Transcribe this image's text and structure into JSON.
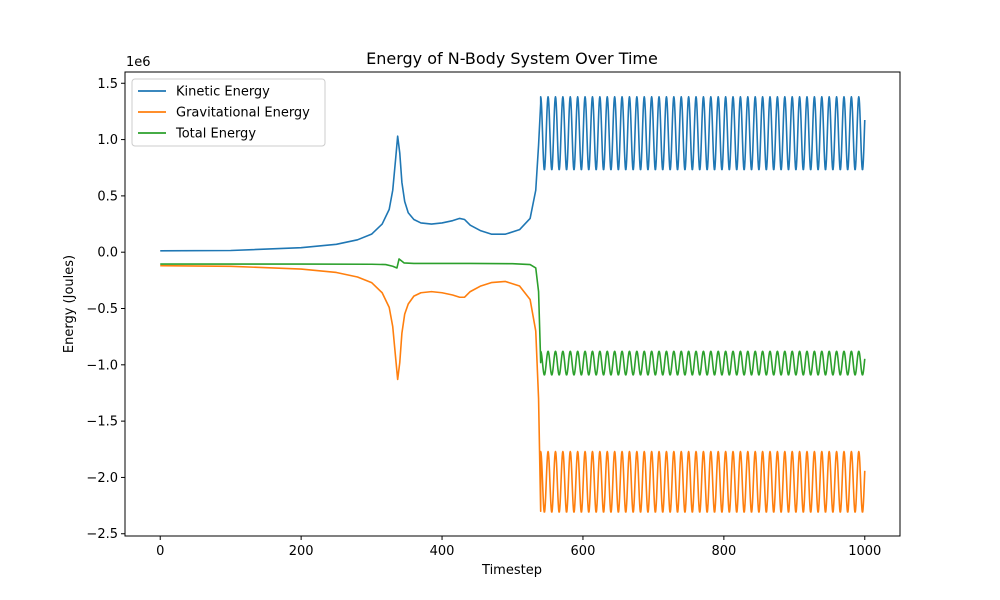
{
  "chart_data": {
    "type": "line",
    "title": "Energy of N-Body System Over Time",
    "xlabel": "Timestep",
    "ylabel": "Energy (Joules)",
    "y_offset_label": "1e6",
    "xlim": [
      -50,
      1050
    ],
    "ylim": [
      -2.52,
      1.6
    ],
    "y_scale": 1000000,
    "xticks": [
      0,
      200,
      400,
      600,
      800,
      1000
    ],
    "xtick_labels": [
      "0",
      "200",
      "400",
      "600",
      "800",
      "1000"
    ],
    "yticks": [
      1.5,
      1.0,
      0.5,
      0.0,
      -0.5,
      -1.0,
      -1.5,
      -2.0,
      -2.5
    ],
    "ytick_labels": [
      "1.5",
      "1.0",
      "0.5",
      "0.0",
      "−0.5",
      "−1.0",
      "−1.5",
      "−2.0",
      "−2.5"
    ],
    "grid": false,
    "legend_position": "top-left",
    "series": [
      {
        "name": "Kinetic Energy",
        "color": "#1f77b4",
        "segments": [
          {
            "kind": "points",
            "x": [
              0,
              100,
              200,
              250,
              280,
              300,
              315,
              325,
              330,
              334,
              337,
              340,
              343,
              347,
              352,
              360,
              370,
              385,
              400,
              415,
              425,
              432,
              440,
              455,
              470,
              490,
              510,
              525,
              533,
              537,
              540
            ],
            "y": [
              0.012,
              0.015,
              0.04,
              0.07,
              0.11,
              0.16,
              0.25,
              0.38,
              0.55,
              0.82,
              1.03,
              0.88,
              0.62,
              0.45,
              0.35,
              0.29,
              0.26,
              0.25,
              0.26,
              0.28,
              0.3,
              0.29,
              0.24,
              0.19,
              0.16,
              0.16,
              0.2,
              0.3,
              0.55,
              0.95,
              1.32
            ]
          },
          {
            "kind": "oscillation",
            "x_start": 540,
            "x_end": 1000,
            "period": 10.5,
            "low": 0.73,
            "high": 1.38
          }
        ]
      },
      {
        "name": "Gravitational Energy",
        "color": "#ff7f0e",
        "segments": [
          {
            "kind": "points",
            "x": [
              0,
              100,
              200,
              250,
              280,
              300,
              315,
              325,
              330,
              334,
              337,
              340,
              343,
              347,
              352,
              360,
              370,
              385,
              400,
              415,
              425,
              432,
              440,
              455,
              470,
              490,
              510,
              525,
              533,
              537,
              540
            ],
            "y": [
              -0.12,
              -0.125,
              -0.15,
              -0.18,
              -0.22,
              -0.27,
              -0.36,
              -0.49,
              -0.66,
              -0.93,
              -1.13,
              -0.98,
              -0.72,
              -0.55,
              -0.46,
              -0.39,
              -0.36,
              -0.35,
              -0.36,
              -0.38,
              -0.4,
              -0.4,
              -0.35,
              -0.3,
              -0.27,
              -0.26,
              -0.3,
              -0.42,
              -0.7,
              -1.3,
              -2.3
            ]
          },
          {
            "kind": "oscillation",
            "x_start": 540,
            "x_end": 1000,
            "period": 10.5,
            "low": -2.31,
            "high": -1.77
          }
        ]
      },
      {
        "name": "Total Energy",
        "color": "#2ca02c",
        "segments": [
          {
            "kind": "points",
            "x": [
              0,
              100,
              200,
              300,
              320,
              330,
              336,
              339,
              342,
              346,
              360,
              400,
              440,
              500,
              525,
              533,
              537,
              540
            ],
            "y": [
              -0.105,
              -0.105,
              -0.105,
              -0.107,
              -0.11,
              -0.125,
              -0.14,
              -0.06,
              -0.075,
              -0.095,
              -0.1,
              -0.1,
              -0.1,
              -0.102,
              -0.11,
              -0.14,
              -0.35,
              -0.98
            ]
          },
          {
            "kind": "oscillation",
            "x_start": 540,
            "x_end": 1000,
            "period": 10.5,
            "low": -1.09,
            "high": -0.88
          }
        ]
      }
    ]
  }
}
